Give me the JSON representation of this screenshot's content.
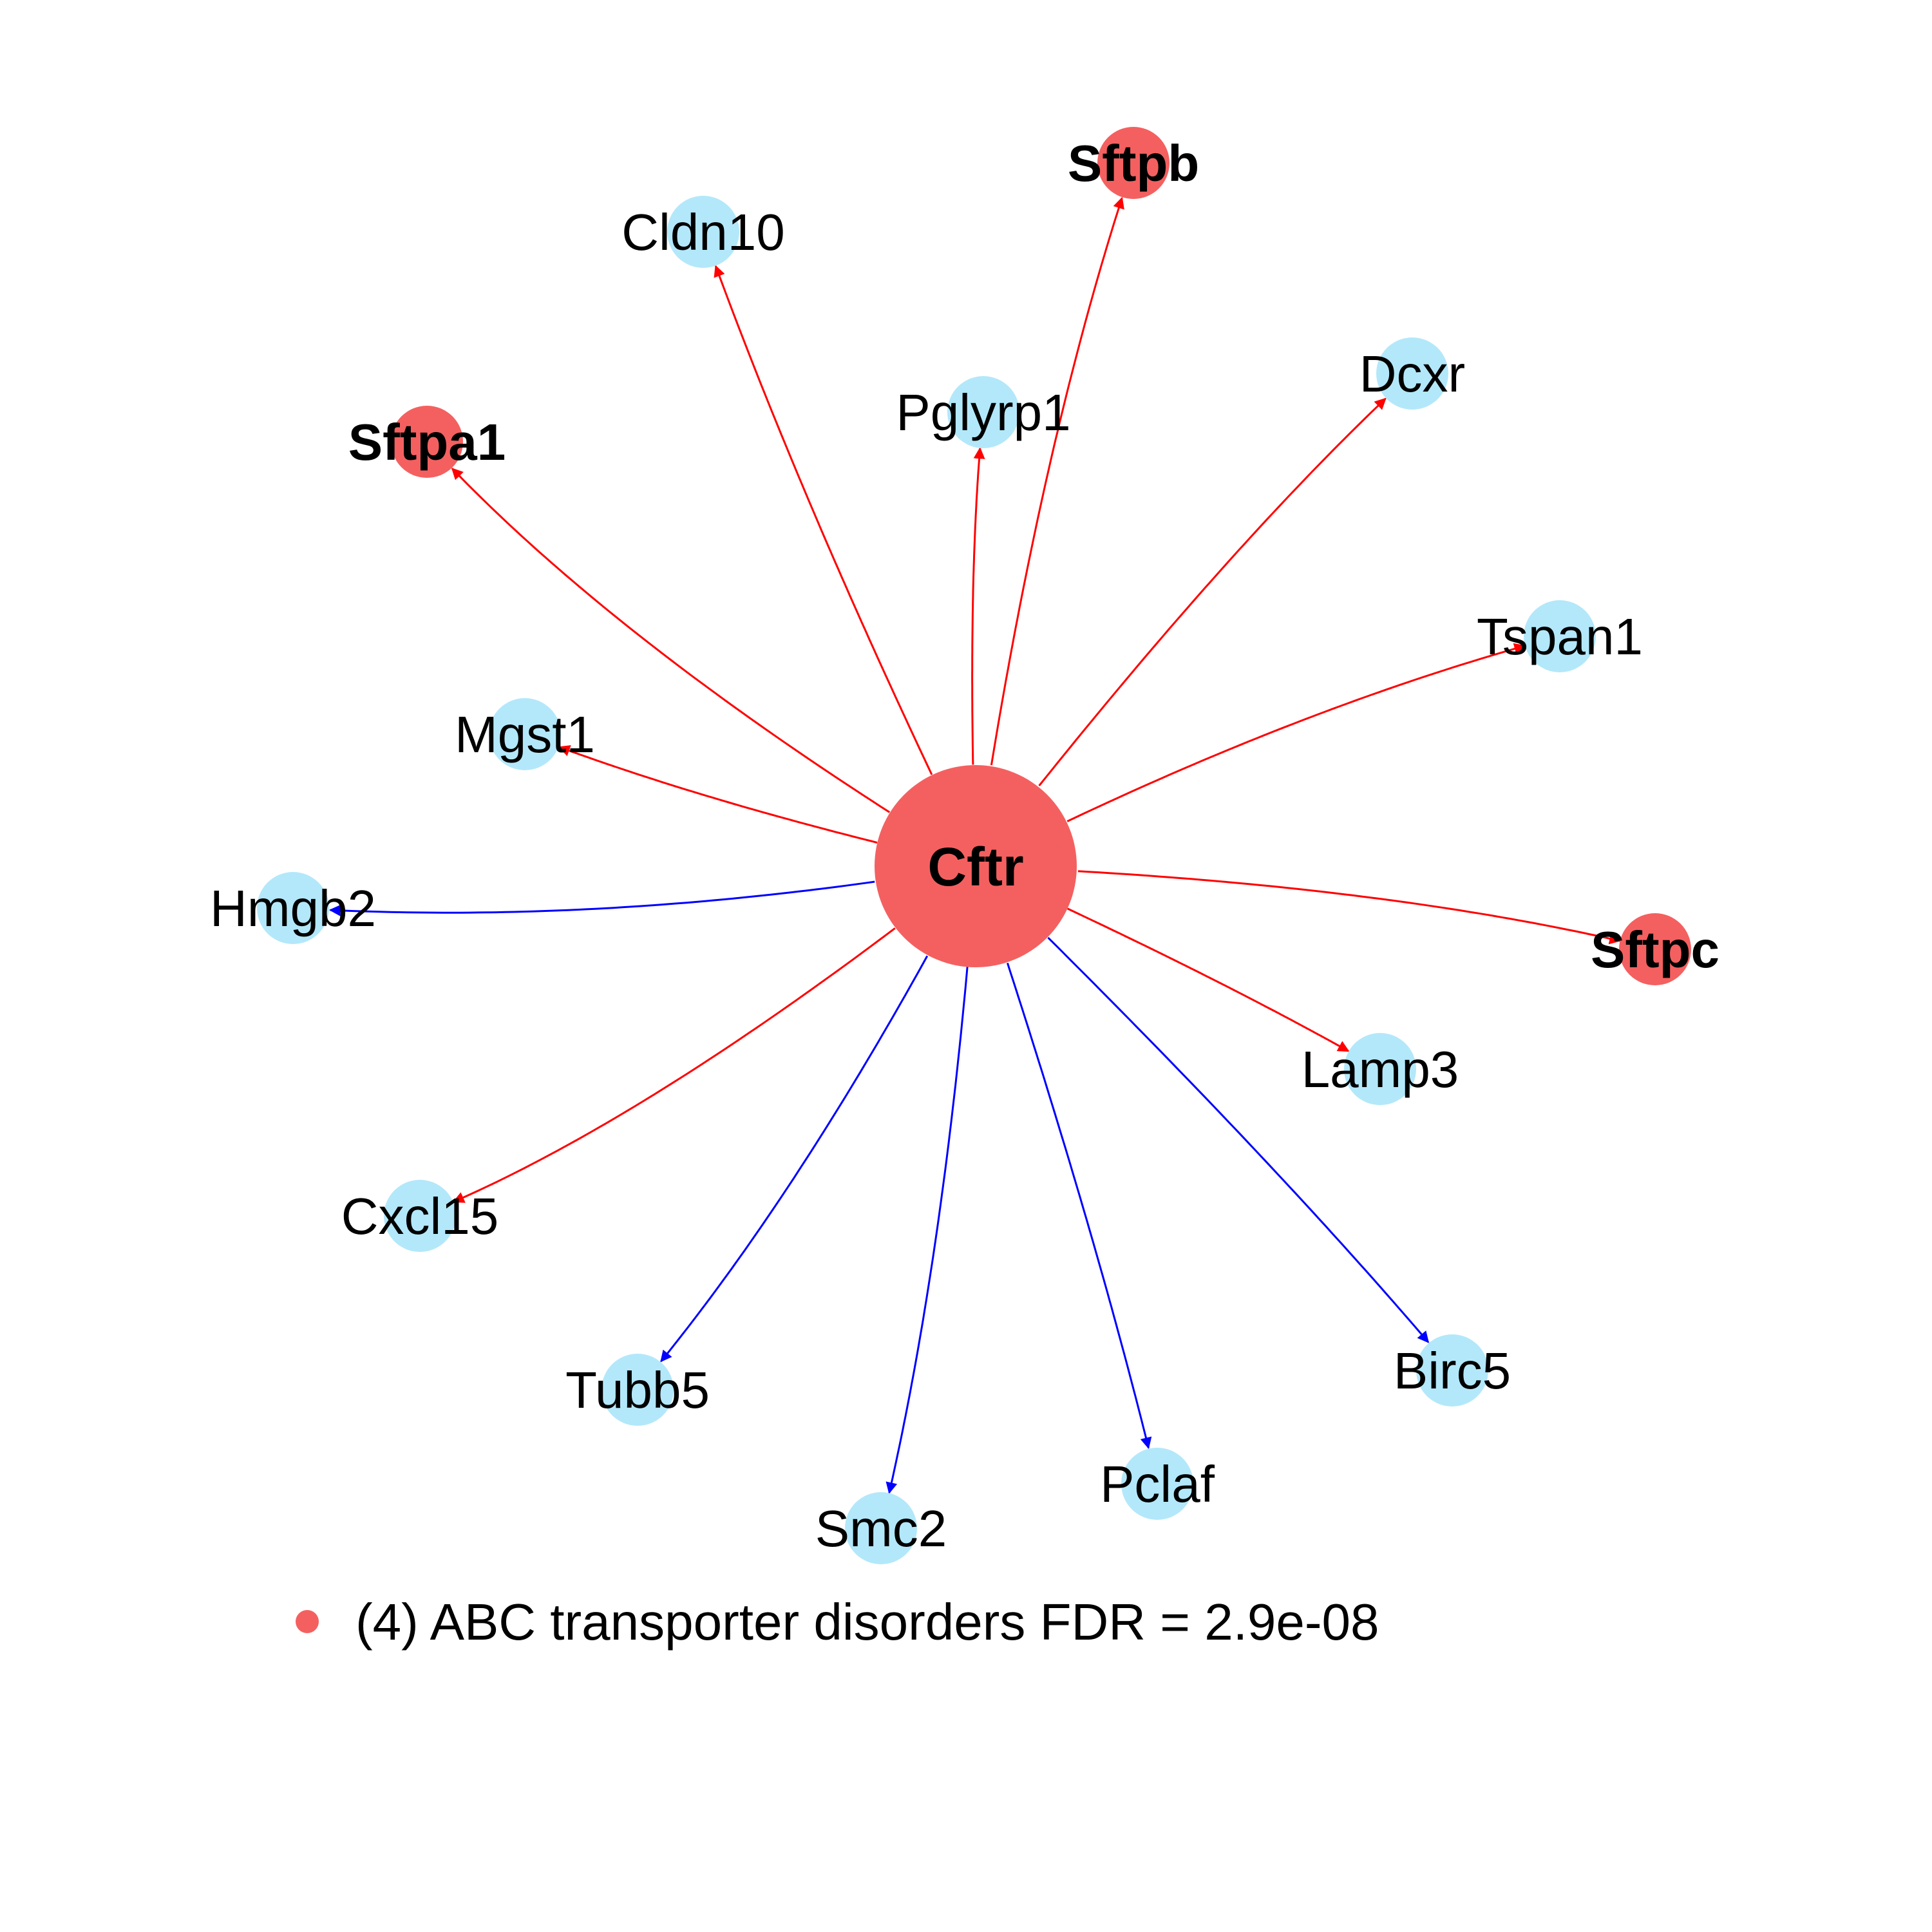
{
  "colors": {
    "highlight_node": "#F46060",
    "regular_node": "#B3E8FA",
    "up_edge": "#FF0000",
    "down_edge": "#0000FF",
    "legend_dot": "#F46060"
  },
  "hub": {
    "id": "Cftr",
    "label": "Cftr",
    "highlight": true
  },
  "nodes": [
    {
      "id": "Sftpb",
      "label": "Sftpb",
      "highlight": true,
      "edge": "up"
    },
    {
      "id": "Cldn10",
      "label": "Cldn10",
      "highlight": false,
      "edge": "up"
    },
    {
      "id": "Pglyrp1",
      "label": "Pglyrp1",
      "highlight": false,
      "edge": "up"
    },
    {
      "id": "Dcxr",
      "label": "Dcxr",
      "highlight": false,
      "edge": "up"
    },
    {
      "id": "Sftpa1",
      "label": "Sftpa1",
      "highlight": true,
      "edge": "up"
    },
    {
      "id": "Tspan1",
      "label": "Tspan1",
      "highlight": false,
      "edge": "up"
    },
    {
      "id": "Mgst1",
      "label": "Mgst1",
      "highlight": false,
      "edge": "up"
    },
    {
      "id": "Hmgb2",
      "label": "Hmgb2",
      "highlight": false,
      "edge": "down"
    },
    {
      "id": "Sftpc",
      "label": "Sftpc",
      "highlight": true,
      "edge": "up"
    },
    {
      "id": "Lamp3",
      "label": "Lamp3",
      "highlight": false,
      "edge": "up"
    },
    {
      "id": "Cxcl15",
      "label": "Cxcl15",
      "highlight": false,
      "edge": "up"
    },
    {
      "id": "Birc5",
      "label": "Birc5",
      "highlight": false,
      "edge": "down"
    },
    {
      "id": "Tubb5",
      "label": "Tubb5",
      "highlight": false,
      "edge": "down"
    },
    {
      "id": "Pclaf",
      "label": "Pclaf",
      "highlight": false,
      "edge": "down"
    },
    {
      "id": "Smc2",
      "label": "Smc2",
      "highlight": false,
      "edge": "down"
    }
  ],
  "legend": {
    "text": "(4) ABC transporter disorders FDR = 2.9e-08"
  }
}
